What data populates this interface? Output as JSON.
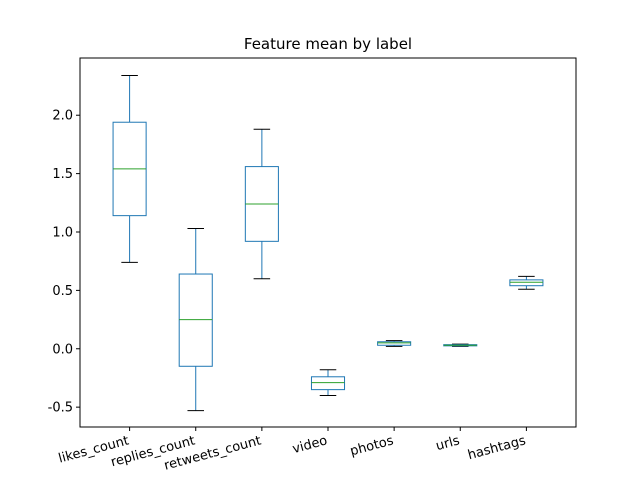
{
  "chart_data": {
    "type": "box",
    "title": "Feature mean by label",
    "xlabel": "",
    "ylabel": "",
    "ylim": [
      -0.67,
      2.49
    ],
    "yticks": [
      "-0.5",
      "0.0",
      "0.5",
      "1.0",
      "1.5",
      "2.0"
    ],
    "ytick_values": [
      -0.5,
      0.0,
      0.5,
      1.0,
      1.5,
      2.0
    ],
    "grid": false,
    "legend": "none",
    "categories": [
      "likes_count",
      "replies_count",
      "retweets_count",
      "video",
      "photos",
      "urls",
      "hashtags"
    ],
    "boxes": [
      {
        "whisker_low": 0.74,
        "q1": 1.14,
        "median": 1.54,
        "q3": 1.94,
        "whisker_high": 2.34
      },
      {
        "whisker_low": -0.53,
        "q1": -0.15,
        "median": 0.25,
        "q3": 0.64,
        "whisker_high": 1.03
      },
      {
        "whisker_low": 0.6,
        "q1": 0.92,
        "median": 1.24,
        "q3": 1.56,
        "whisker_high": 1.88
      },
      {
        "whisker_low": -0.4,
        "q1": -0.35,
        "median": -0.29,
        "q3": -0.24,
        "whisker_high": -0.18
      },
      {
        "whisker_low": 0.02,
        "q1": 0.03,
        "median": 0.05,
        "q3": 0.06,
        "whisker_high": 0.07
      },
      {
        "whisker_low": 0.02,
        "q1": 0.025,
        "median": 0.03,
        "q3": 0.035,
        "whisker_high": 0.04
      },
      {
        "whisker_low": 0.51,
        "q1": 0.54,
        "median": 0.57,
        "q3": 0.59,
        "whisker_high": 0.62
      }
    ],
    "colors": {
      "box": "#1f77b4",
      "median": "#2ca02c",
      "whisker_cap": "#000000",
      "axes": "#000000"
    }
  }
}
